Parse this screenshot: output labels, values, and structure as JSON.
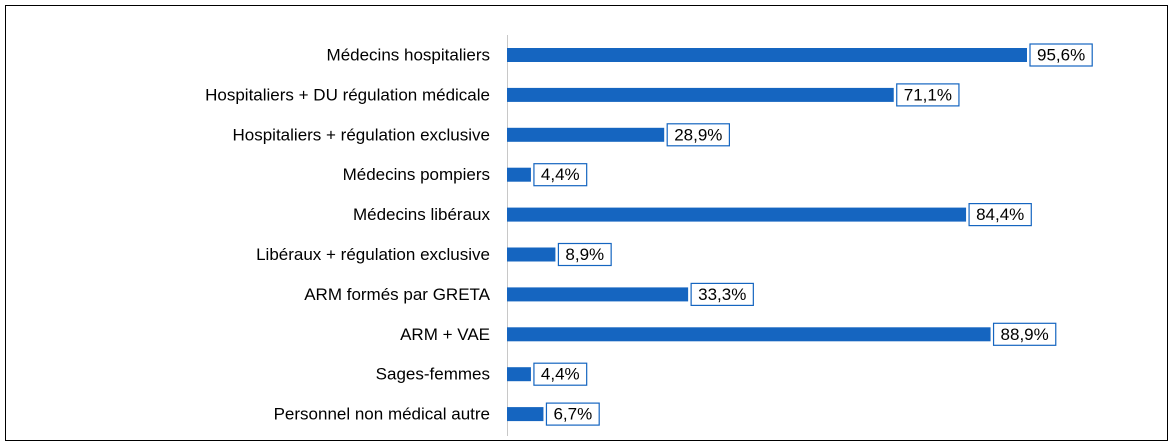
{
  "chart_data": {
    "type": "bar",
    "orientation": "horizontal",
    "categories": [
      "Médecins hospitaliers",
      "Hospitaliers + DU régulation médicale",
      "Hospitaliers + régulation exclusive",
      "Médecins pompiers",
      "Médecins libéraux",
      "Libéraux + régulation exclusive",
      "ARM formés par GRETA",
      "ARM + VAE",
      "Sages-femmes",
      "Personnel non médical autre"
    ],
    "values": [
      95.6,
      71.1,
      28.9,
      4.4,
      84.4,
      8.9,
      33.3,
      88.9,
      4.4,
      6.7
    ],
    "value_labels": [
      "95,6%",
      "71,1%",
      "28,9%",
      "4,4%",
      "84,4%",
      "8,9%",
      "33,3%",
      "88,9%",
      "4,4%",
      "6,7%"
    ],
    "color": "#1565c0"
  }
}
